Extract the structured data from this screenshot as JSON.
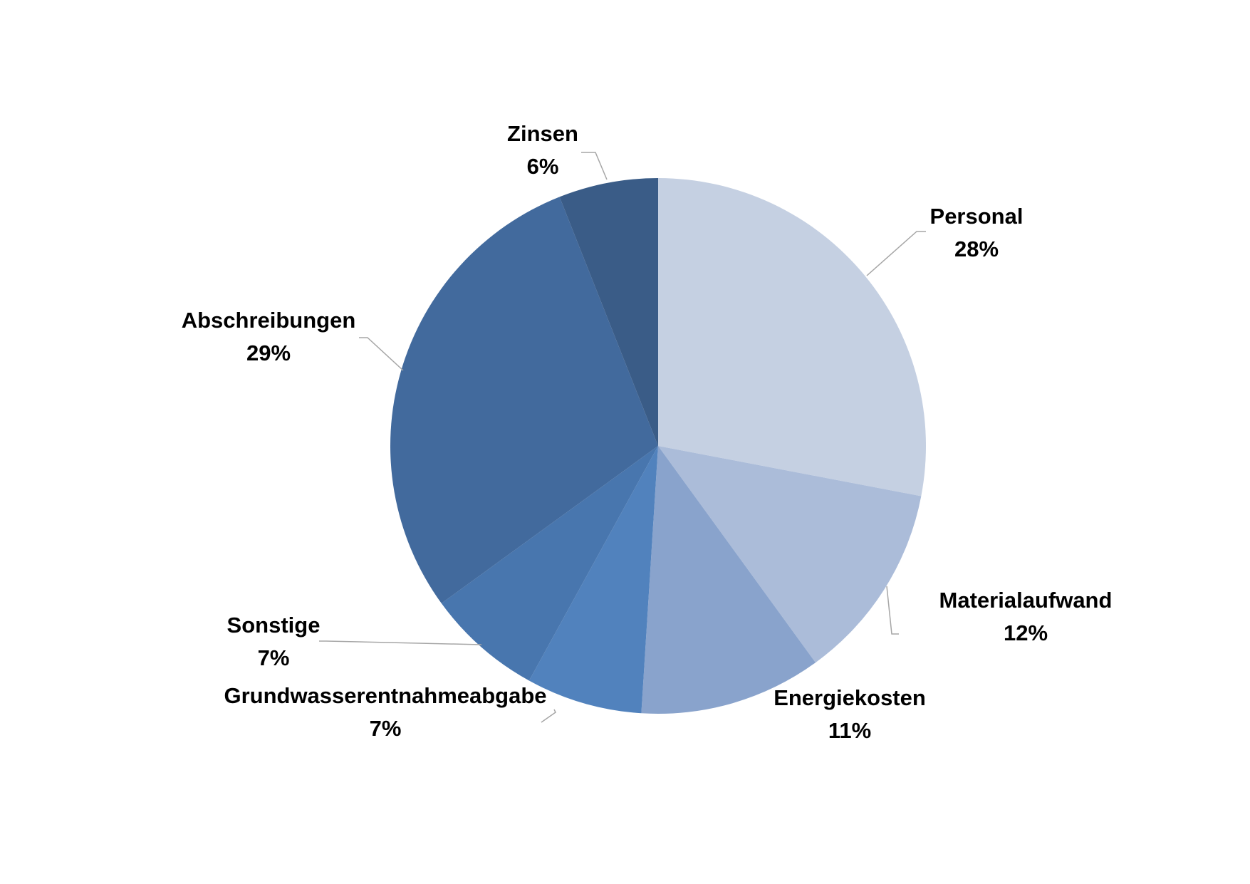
{
  "chart_data": {
    "type": "pie",
    "title": "",
    "start_angle_deg": 0,
    "direction": "clockwise",
    "slices": [
      {
        "name": "Personal",
        "value": 28,
        "label": "28%",
        "color": "#c5d0e2"
      },
      {
        "name": "Materialaufwand",
        "value": 12,
        "label": "12%",
        "color": "#abbcd9"
      },
      {
        "name": "Energiekosten",
        "value": 11,
        "label": "11%",
        "color": "#89a3cc"
      },
      {
        "name": "Grundwasserentnahmeabgabe",
        "value": 7,
        "label": "7%",
        "color": "#5182bd"
      },
      {
        "name": "Sonstige",
        "value": 7,
        "label": "7%",
        "color": "#4876ae"
      },
      {
        "name": "Abschreibungen",
        "value": 29,
        "label": "29%",
        "color": "#426a9d"
      },
      {
        "name": "Zinsen",
        "value": 6,
        "label": "6%",
        "color": "#3a5c87"
      }
    ],
    "legend": "none",
    "data_labels": "outside-with-leader-lines"
  }
}
